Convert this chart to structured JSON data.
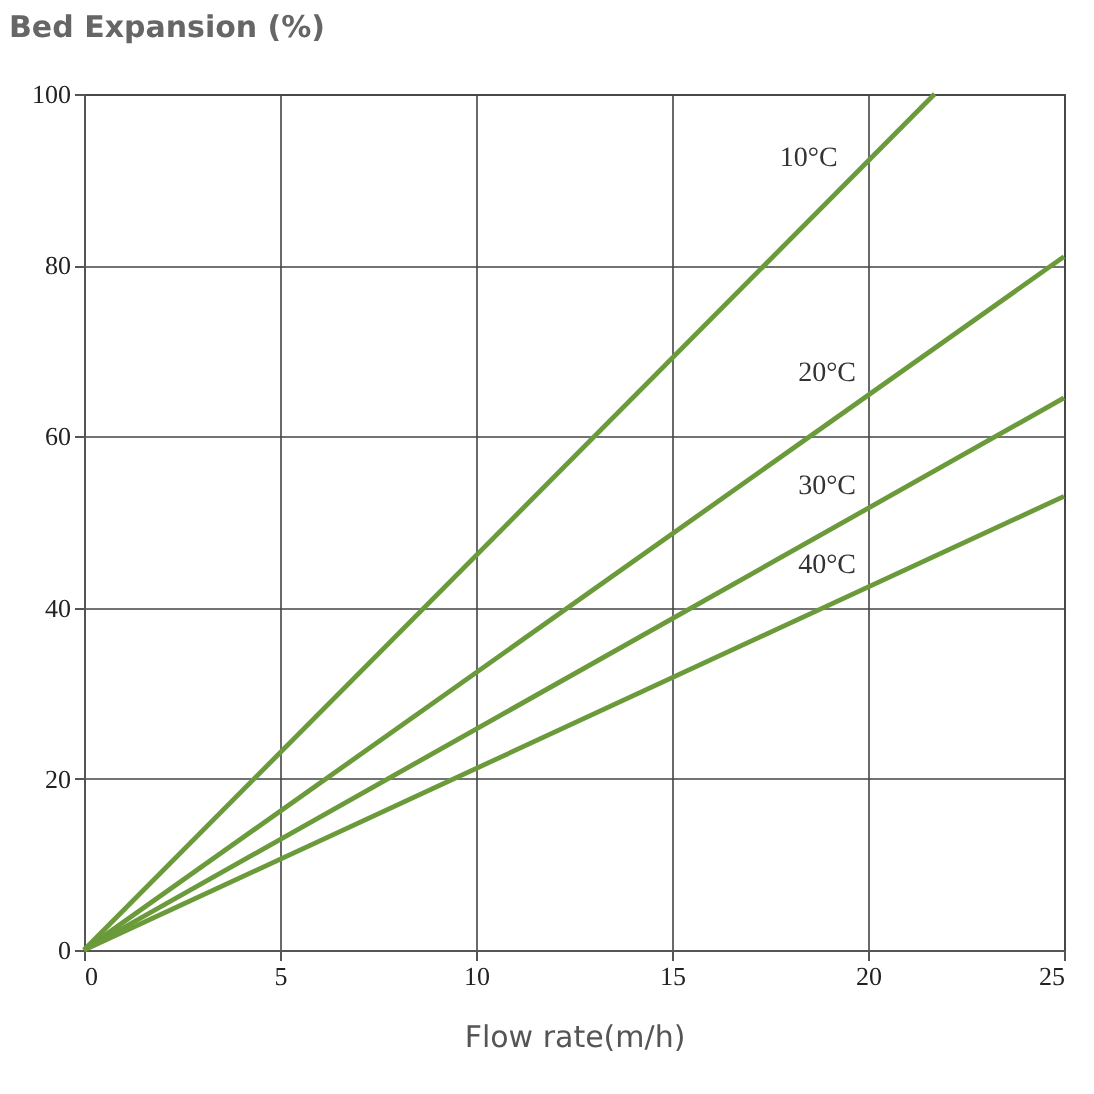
{
  "chart_data": {
    "type": "line",
    "ylabel": "Bed Expansion (%)",
    "xlabel": "Flow rate(m/h)",
    "series": [
      {
        "name": "10°C",
        "color": "#6a9a3a",
        "x": [
          0,
          21.7
        ],
        "values": [
          0,
          100
        ]
      },
      {
        "name": "20°C",
        "color": "#6a9a3a",
        "x": [
          0,
          25
        ],
        "values": [
          0,
          81
        ]
      },
      {
        "name": "30°C",
        "color": "#6a9a3a",
        "x": [
          0,
          25
        ],
        "values": [
          0,
          64.5
        ]
      },
      {
        "name": "40°C",
        "color": "#6a9a3a",
        "x": [
          0,
          25
        ],
        "values": [
          0,
          53
        ]
      }
    ],
    "xlim": [
      0,
      25
    ],
    "xticks": [
      0,
      5,
      10,
      15,
      20,
      25
    ],
    "ylim": [
      0,
      100
    ],
    "yticks": [
      0,
      20,
      40,
      60,
      80,
      100
    ],
    "grid": true,
    "legend": false,
    "marker": "none",
    "line_style": "solid"
  }
}
